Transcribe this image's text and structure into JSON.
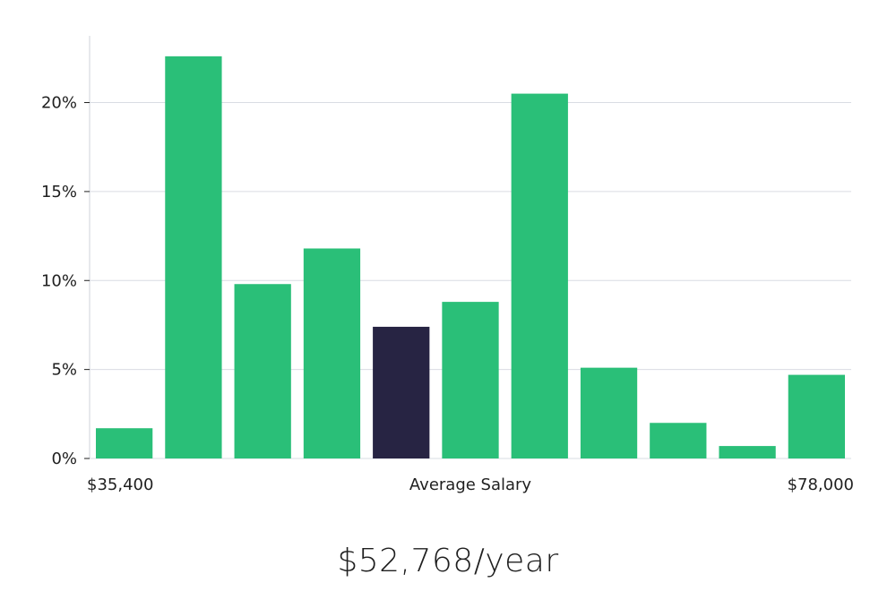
{
  "chart_data": {
    "type": "bar",
    "title": "",
    "xlabel": "Average Salary",
    "ylabel": "",
    "x_start_label": "$35,400",
    "x_end_label": "$78,000",
    "ylim": [
      0,
      23.75
    ],
    "yticks": [
      0,
      5,
      10,
      15,
      20
    ],
    "ytick_labels": [
      "0%",
      "5%",
      "10%",
      "15%",
      "20%"
    ],
    "grid": true,
    "values": [
      1.7,
      22.6,
      9.8,
      11.8,
      7.4,
      8.8,
      20.5,
      5.1,
      2.0,
      0.7,
      4.7
    ],
    "highlight_index": 4,
    "colors": {
      "bar": "#2abf78",
      "highlight": "#272443",
      "grid": "#d9dce3",
      "axis": "#cfd3da"
    }
  },
  "summary": {
    "salary_text": "$52,768/year"
  }
}
